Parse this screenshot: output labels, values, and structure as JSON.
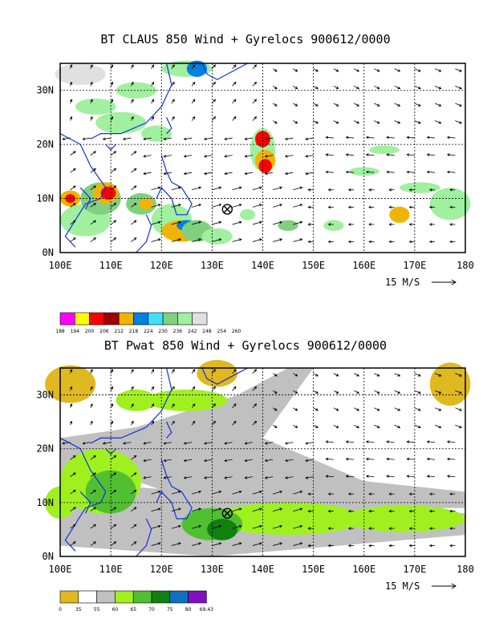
{
  "panel1": {
    "title": "BT CLAUS 850 Wind + Gyrelocs 900612/0000",
    "x_ticks": [
      "100E",
      "110E",
      "120E",
      "130E",
      "140E",
      "150E",
      "160E",
      "170E",
      "180"
    ],
    "y_ticks": [
      "0N",
      "10N",
      "20N",
      "30N"
    ],
    "vector_label": "15 M/S",
    "colorbar_labels": [
      "188",
      "194",
      "200",
      "206",
      "212",
      "218",
      "224",
      "230",
      "236",
      "242",
      "248",
      "254",
      "260"
    ],
    "colorbar_colors": [
      "#ff00ff",
      "#ffff00",
      "#ff0000",
      "#a00000",
      "#f0b400",
      "#0080e0",
      "#40e0f8",
      "#80d080",
      "#a0f0a0",
      "#e0e0e0"
    ],
    "gyre_marker": {
      "lon": 133,
      "lat": 8
    }
  },
  "panel2": {
    "title": "BT Pwat 850 Wind + Gyrelocs 900612/0000",
    "x_ticks": [
      "100E",
      "110E",
      "120E",
      "130E",
      "140E",
      "150E",
      "160E",
      "170E",
      "180"
    ],
    "y_ticks": [
      "0N",
      "10N",
      "20N",
      "30N"
    ],
    "vector_label": "15 M/S",
    "colorbar_labels": [
      "0",
      "35",
      "55",
      "60",
      "65",
      "70",
      "75",
      "80",
      "69.43"
    ],
    "colorbar_colors": [
      "#e0b820",
      "#ffffff",
      "#c0c0c0",
      "#a0f020",
      "#50c030",
      "#108010",
      "#1070c0",
      "#8010c0"
    ],
    "gyre_marker": {
      "lon": 133,
      "lat": 8
    }
  }
}
